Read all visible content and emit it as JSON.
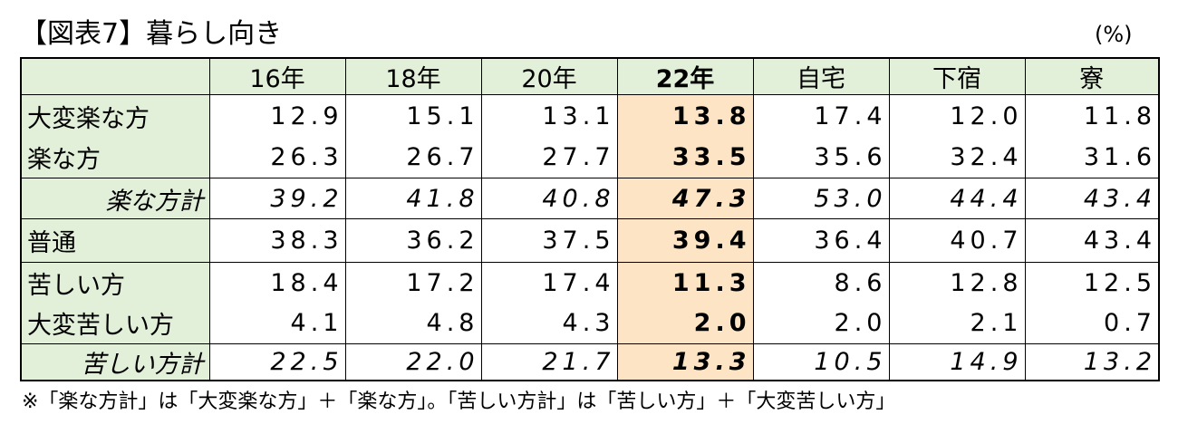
{
  "header": {
    "title": "【図表7】暮らし向き",
    "unit": "(%)"
  },
  "table": {
    "columns": [
      "16年",
      "18年",
      "20年",
      "22年",
      "自宅",
      "下宿",
      "寮"
    ],
    "rows": [
      {
        "label": "大変楽な方",
        "values": [
          "12.9",
          "15.1",
          "13.1",
          "13.8",
          "17.4",
          "12.0",
          "11.8"
        ]
      },
      {
        "label": "楽な方",
        "values": [
          "26.3",
          "26.7",
          "27.7",
          "33.5",
          "35.6",
          "32.4",
          "31.6"
        ]
      },
      {
        "label": "楽な方計",
        "values": [
          "39.2",
          "41.8",
          "40.8",
          "47.3",
          "53.0",
          "44.4",
          "43.4"
        ]
      },
      {
        "label": "普通",
        "values": [
          "38.3",
          "36.2",
          "37.5",
          "39.4",
          "36.4",
          "40.7",
          "43.4"
        ]
      },
      {
        "label": "苦しい方",
        "values": [
          "18.4",
          "17.2",
          "17.4",
          "11.3",
          "8.6",
          "12.8",
          "12.5"
        ]
      },
      {
        "label": "大変苦しい方",
        "values": [
          "4.1",
          "4.8",
          "4.3",
          "2.0",
          "2.0",
          "2.1",
          "0.7"
        ]
      },
      {
        "label": "苦しい方計",
        "values": [
          "22.5",
          "22.0",
          "21.7",
          "13.3",
          "10.5",
          "14.9",
          "13.2"
        ]
      }
    ]
  },
  "footnote": "※「楽な方計」は「大変楽な方」＋「楽な方」。「苦しい方計」は「苦しい方」＋「大変苦しい方」"
}
